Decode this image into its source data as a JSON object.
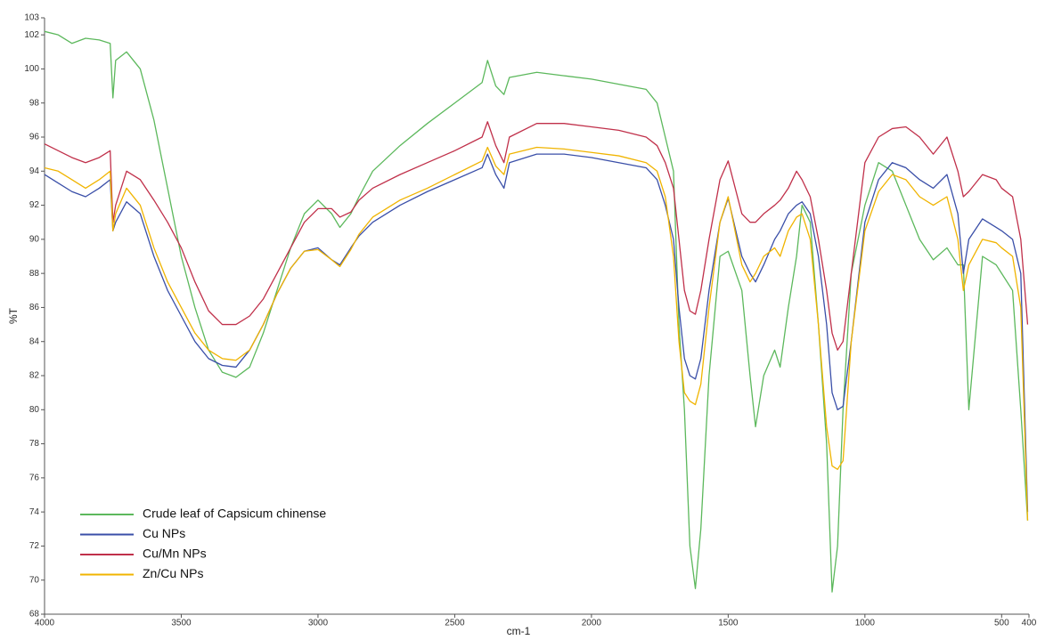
{
  "chart_data": {
    "type": "line",
    "x_label": "cm-1",
    "y_label": "%T",
    "x": [
      4000,
      3950,
      3900,
      3850,
      3800,
      3760,
      3750,
      3740,
      3700,
      3650,
      3600,
      3550,
      3500,
      3450,
      3400,
      3350,
      3300,
      3250,
      3200,
      3150,
      3100,
      3050,
      3000,
      2950,
      2920,
      2880,
      2850,
      2800,
      2700,
      2600,
      2500,
      2400,
      2380,
      2350,
      2320,
      2300,
      2200,
      2100,
      2000,
      1900,
      1800,
      1760,
      1730,
      1700,
      1680,
      1660,
      1640,
      1620,
      1600,
      1570,
      1530,
      1500,
      1450,
      1420,
      1400,
      1370,
      1330,
      1310,
      1280,
      1250,
      1230,
      1200,
      1170,
      1140,
      1120,
      1100,
      1080,
      1050,
      1000,
      950,
      900,
      850,
      800,
      750,
      700,
      660,
      640,
      620,
      570,
      520,
      500,
      460,
      430,
      405
    ],
    "series": [
      {
        "name": "Crude leaf of Capsicum chinense",
        "color": "#5cb85c",
        "values": [
          102.2,
          102,
          101.5,
          101.8,
          101.7,
          101.5,
          98.3,
          100.5,
          101,
          100,
          97,
          93,
          89,
          86,
          83.5,
          82.2,
          81.9,
          82.5,
          84.5,
          87,
          89.5,
          91.5,
          92.3,
          91.5,
          90.7,
          91.5,
          92.5,
          94,
          95.5,
          96.8,
          98,
          99.2,
          100.5,
          99,
          98.5,
          99.5,
          99.8,
          99.6,
          99.4,
          99.1,
          98.8,
          98,
          96,
          94,
          85,
          80,
          72,
          69.5,
          73,
          82,
          89,
          89.3,
          87,
          82,
          79,
          82,
          83.5,
          82.5,
          86,
          89,
          92,
          91,
          85,
          78,
          69.3,
          72,
          80,
          88,
          92,
          94.5,
          94,
          92,
          90,
          88.8,
          89.5,
          88.5,
          88.5,
          80,
          89,
          88.5,
          88,
          87,
          80,
          73.5
        ]
      },
      {
        "name": "Cu NPs",
        "color": "#3a4fa8",
        "values": [
          93.8,
          93.3,
          92.8,
          92.5,
          93,
          93.5,
          90.5,
          91,
          92.2,
          91.5,
          89,
          87,
          85.5,
          84,
          83,
          82.6,
          82.5,
          83.5,
          85,
          86.8,
          88.3,
          89.3,
          89.5,
          88.8,
          88.5,
          89.5,
          90.2,
          91,
          92,
          92.8,
          93.5,
          94.2,
          95,
          93.8,
          93,
          94.5,
          95,
          95,
          94.8,
          94.5,
          94.2,
          93.5,
          92,
          90,
          86,
          83,
          82,
          81.8,
          83,
          87,
          91,
          92.4,
          89,
          88,
          87.5,
          88.5,
          90,
          90.5,
          91.5,
          92,
          92.2,
          91.5,
          89,
          85,
          81,
          80,
          80.2,
          84,
          91,
          93.5,
          94.5,
          94.2,
          93.5,
          93,
          93.8,
          91.5,
          88,
          90,
          91.2,
          90.7,
          90.5,
          90,
          88,
          74
        ]
      },
      {
        "name": "Cu/Mn NPs",
        "color": "#c0304a",
        "values": [
          95.6,
          95.2,
          94.8,
          94.5,
          94.8,
          95.2,
          91,
          92,
          94,
          93.5,
          92.3,
          91,
          89.5,
          87.5,
          85.8,
          85,
          85,
          85.5,
          86.5,
          88,
          89.5,
          91,
          91.8,
          91.8,
          91.3,
          91.6,
          92.3,
          93,
          93.8,
          94.5,
          95.2,
          96,
          96.9,
          95.5,
          94.5,
          96,
          96.8,
          96.8,
          96.6,
          96.4,
          96,
          95.5,
          94.5,
          93,
          90,
          87,
          85.8,
          85.6,
          87,
          90,
          93.5,
          94.6,
          91.5,
          91,
          91,
          91.5,
          92,
          92.3,
          93,
          94,
          93.5,
          92.5,
          90,
          87,
          84.5,
          83.5,
          84,
          88,
          94.5,
          96,
          96.5,
          96.6,
          96,
          95,
          96,
          94,
          92.5,
          92.8,
          93.8,
          93.5,
          93,
          92.5,
          90,
          85
        ]
      },
      {
        "name": "Zn/Cu NPs",
        "color": "#f0b400",
        "values": [
          94.2,
          94,
          93.5,
          93,
          93.5,
          94,
          90.5,
          91.5,
          93,
          92,
          89.5,
          87.5,
          86,
          84.5,
          83.5,
          83,
          82.9,
          83.5,
          85,
          86.8,
          88.3,
          89.3,
          89.4,
          88.8,
          88.4,
          89.4,
          90.3,
          91.3,
          92.3,
          93,
          93.8,
          94.6,
          95.4,
          94.3,
          93.8,
          95,
          95.4,
          95.3,
          95.1,
          94.9,
          94.5,
          94,
          92.5,
          89,
          84,
          81,
          80.5,
          80.3,
          81.5,
          86,
          91,
          92.5,
          88.5,
          87.5,
          88,
          89,
          89.5,
          89,
          90.5,
          91.3,
          91.5,
          90,
          85,
          79,
          76.7,
          76.5,
          77,
          84,
          90.5,
          92.8,
          93.8,
          93.5,
          92.5,
          92,
          92.5,
          90,
          87,
          88.5,
          90,
          89.8,
          89.5,
          89,
          86,
          73.5
        ]
      }
    ],
    "xlim": [
      4000,
      400
    ],
    "xticks": [
      4000,
      3500,
      3000,
      2500,
      2000,
      1500,
      1000,
      500,
      400
    ],
    "ylim": [
      68,
      103
    ],
    "yticks": [
      68,
      70,
      72,
      74,
      76,
      78,
      80,
      82,
      84,
      86,
      88,
      90,
      92,
      94,
      96,
      98,
      100,
      102,
      103
    ],
    "legend": "lower left"
  }
}
